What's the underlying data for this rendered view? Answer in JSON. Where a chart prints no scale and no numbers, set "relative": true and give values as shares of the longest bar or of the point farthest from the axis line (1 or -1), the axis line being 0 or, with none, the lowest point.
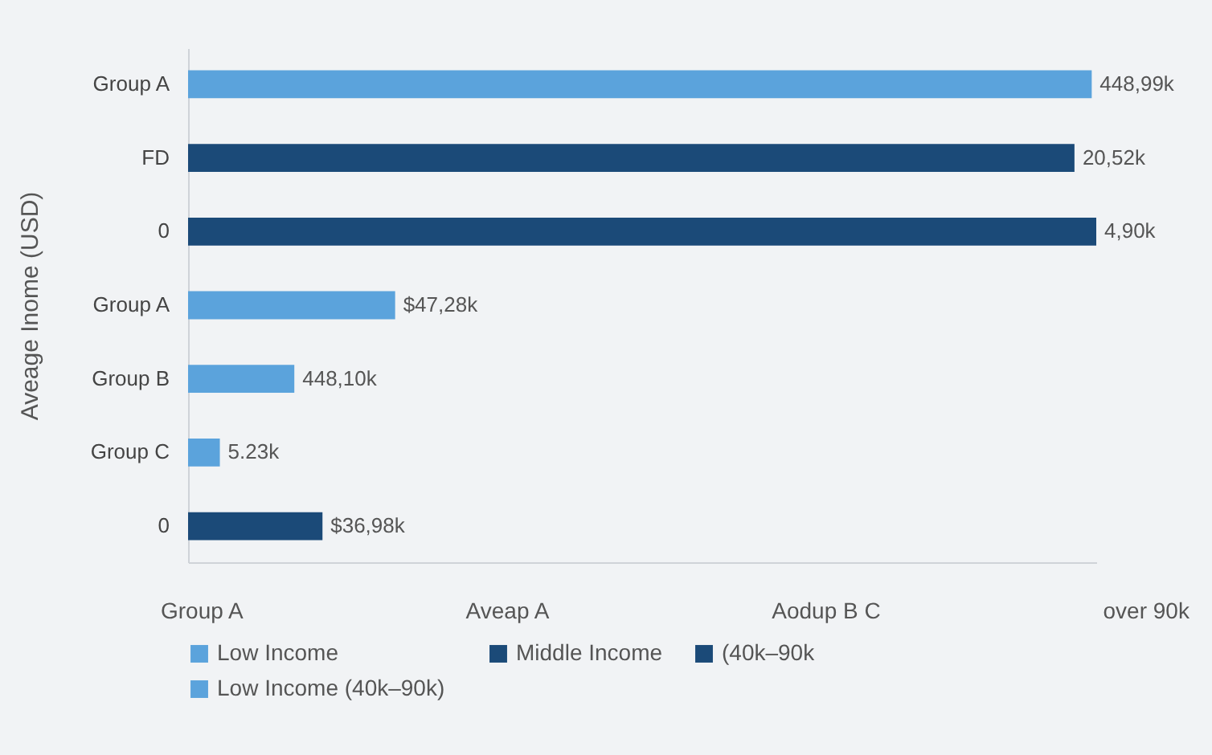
{
  "chart_data": {
    "type": "bar",
    "orientation": "horizontal",
    "relative": true,
    "ylabel": "Aveage Inome (USD)",
    "categories": [
      "Group A",
      "FD",
      "0",
      "Group A",
      "Group B",
      "Group C",
      "0"
    ],
    "series": [
      {
        "name": "Low Income",
        "color": "#5ba3dc",
        "values": [
          0.995,
          null,
          null,
          0.228,
          0.117,
          0.035,
          null
        ]
      },
      {
        "name": "Middle Income",
        "color": "#1b4a78",
        "values": [
          null,
          0.976,
          1,
          null,
          null,
          null,
          0.148
        ]
      },
      {
        "name": "(40k–90k",
        "color": "#1b4a78",
        "values": [
          null,
          null,
          null,
          null,
          null,
          null,
          null
        ]
      },
      {
        "name": "Low Income   (40k–90k)",
        "color": "#5ba3dc",
        "values": [
          null,
          null,
          null,
          null,
          null,
          null,
          null
        ]
      }
    ],
    "value_labels": [
      "448,99k",
      "20,52k",
      "4,90k",
      "$47,28k",
      "448,10k",
      "5.23k",
      "$36,98k"
    ],
    "annotations": [
      "Group A",
      "Aveap A",
      "Aodup B C",
      "over 90k"
    ],
    "legend": "bottom"
  }
}
